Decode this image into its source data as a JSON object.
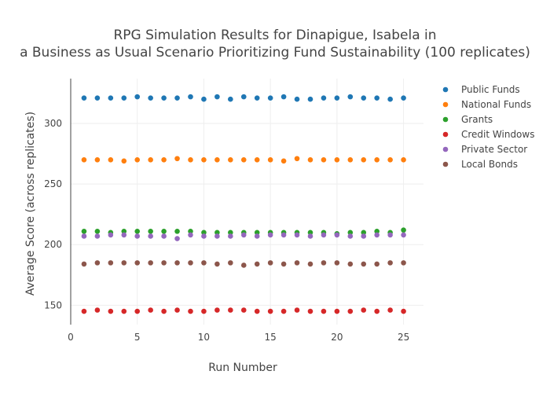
{
  "chart_data": {
    "type": "scatter",
    "title_lines": [
      "RPG Simulation Results for Dinapigue, Isabela in",
      "a Business as Usual Scenario Prioritizing Fund Sustainability (100 replicates)"
    ],
    "xlabel": "Run Number",
    "ylabel": "Average Score (across replicates)",
    "xlim": [
      0,
      26.5
    ],
    "ylim": [
      134,
      337
    ],
    "x_ticks": [
      0,
      5,
      10,
      15,
      20,
      25
    ],
    "y_ticks": [
      150,
      200,
      250,
      300
    ],
    "grid": true,
    "legend_position": "top-right",
    "x": [
      1,
      2,
      3,
      4,
      5,
      6,
      7,
      8,
      9,
      10,
      11,
      12,
      13,
      14,
      15,
      16,
      17,
      18,
      19,
      20,
      21,
      22,
      23,
      24,
      25
    ],
    "series": [
      {
        "name": "Public Funds",
        "color": "#1f77b4",
        "values": [
          321,
          321,
          321,
          321,
          322,
          321,
          321,
          321,
          322,
          320,
          322,
          320,
          322,
          321,
          321,
          322,
          320,
          320,
          321,
          321,
          322,
          321,
          321,
          320,
          321
        ]
      },
      {
        "name": "National Funds",
        "color": "#ff7f0e",
        "values": [
          270,
          270,
          270,
          269,
          270,
          270,
          270,
          271,
          270,
          270,
          270,
          270,
          270,
          270,
          270,
          269,
          271,
          270,
          270,
          270,
          270,
          270,
          270,
          270,
          270
        ]
      },
      {
        "name": "Grants",
        "color": "#2ca02c",
        "values": [
          211,
          211,
          210,
          211,
          211,
          211,
          211,
          211,
          211,
          210,
          210,
          210,
          210,
          210,
          210,
          210,
          210,
          210,
          210,
          209,
          210,
          210,
          211,
          210,
          212
        ]
      },
      {
        "name": "Credit Windows",
        "color": "#d62728",
        "values": [
          145,
          146,
          145,
          145,
          145,
          146,
          145,
          146,
          145,
          145,
          146,
          146,
          146,
          145,
          145,
          145,
          146,
          145,
          145,
          145,
          145,
          146,
          145,
          146,
          145
        ]
      },
      {
        "name": "Private Sector",
        "color": "#9467bd",
        "values": [
          207,
          207,
          208,
          208,
          207,
          207,
          207,
          205,
          208,
          207,
          207,
          207,
          208,
          207,
          208,
          208,
          208,
          207,
          208,
          208,
          207,
          207,
          208,
          208,
          208
        ]
      },
      {
        "name": "Local Bonds",
        "color": "#8c564b",
        "values": [
          184,
          185,
          185,
          185,
          185,
          185,
          185,
          185,
          185,
          185,
          184,
          185,
          183,
          184,
          185,
          184,
          185,
          184,
          185,
          185,
          184,
          184,
          184,
          185,
          185
        ]
      }
    ]
  }
}
